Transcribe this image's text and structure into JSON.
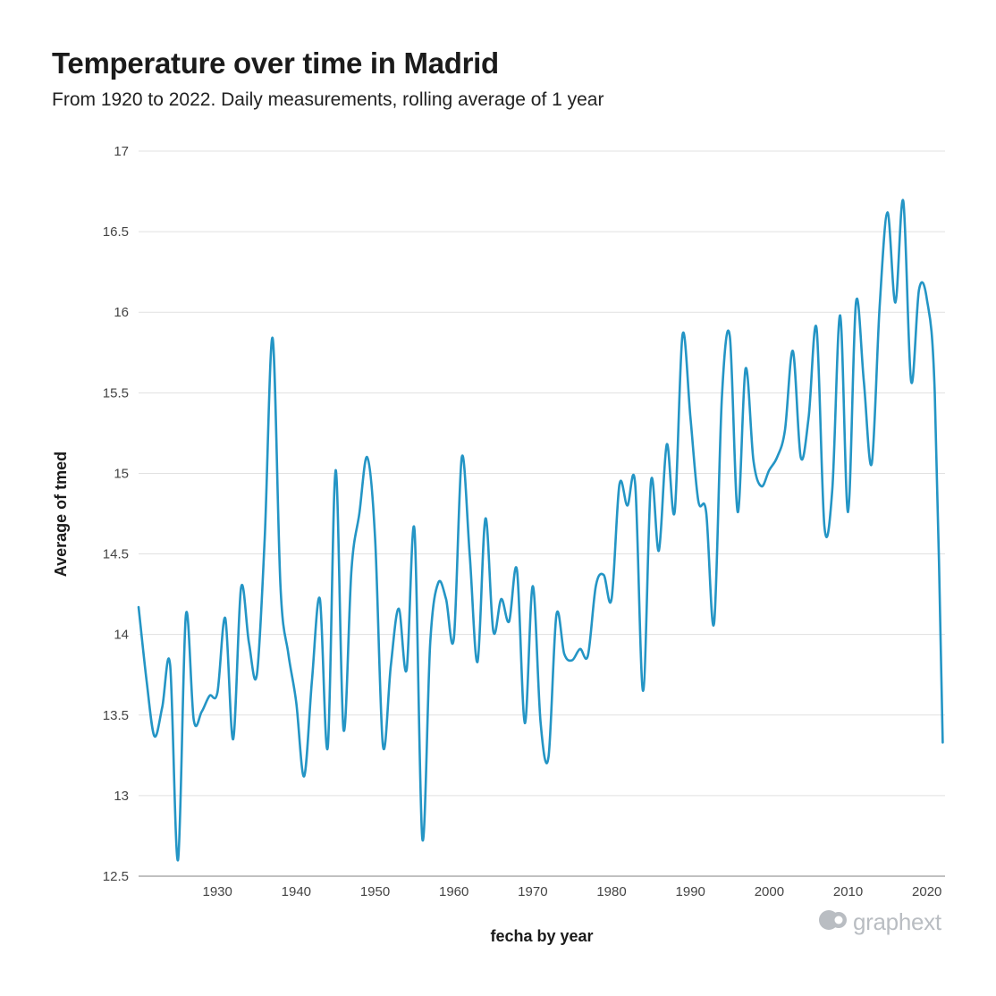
{
  "chart_data": {
    "type": "line",
    "title": "Temperature over time in Madrid",
    "subtitle": "From 1920 to 2022. Daily measurements, rolling average of 1 year",
    "xlabel": "fecha by year",
    "ylabel": "Average of tmed",
    "xlim": [
      1920,
      2022.3
    ],
    "ylim": [
      12.5,
      17
    ],
    "yticks": [
      "12.5",
      "13",
      "13.5",
      "14",
      "14.5",
      "15",
      "15.5",
      "16",
      "16.5",
      "17"
    ],
    "xticks": [
      "1930",
      "1940",
      "1950",
      "1960",
      "1970",
      "1980",
      "1990",
      "2000",
      "2010",
      "2020"
    ],
    "grid": true,
    "series": [
      {
        "name": "Average of tmed",
        "color": "#2495c5",
        "x": [
          1920,
          1921,
          1922,
          1923,
          1924,
          1925,
          1926,
          1927,
          1928,
          1929,
          1930,
          1931,
          1932,
          1933,
          1934,
          1935,
          1936,
          1937,
          1938,
          1939,
          1940,
          1941,
          1942,
          1943,
          1944,
          1945,
          1946,
          1947,
          1948,
          1949,
          1950,
          1951,
          1952,
          1953,
          1954,
          1955,
          1956,
          1957,
          1958,
          1959,
          1960,
          1961,
          1962,
          1963,
          1964,
          1965,
          1966,
          1967,
          1968,
          1969,
          1970,
          1971,
          1972,
          1973,
          1974,
          1975,
          1976,
          1977,
          1978,
          1979,
          1980,
          1981,
          1982,
          1983,
          1984,
          1985,
          1986,
          1987,
          1988,
          1989,
          1990,
          1991,
          1992,
          1993,
          1994,
          1995,
          1996,
          1997,
          1998,
          1999,
          2000,
          2001,
          2002,
          2003,
          2004,
          2005,
          2006,
          2007,
          2008,
          2009,
          2010,
          2011,
          2012,
          2013,
          2014,
          2015,
          2016,
          2017,
          2018,
          2019,
          2020,
          2021,
          2022
        ],
        "values": [
          14.17,
          13.72,
          13.37,
          13.55,
          13.81,
          12.6,
          14.12,
          13.47,
          13.52,
          13.62,
          13.64,
          14.1,
          13.35,
          14.29,
          13.95,
          13.75,
          14.6,
          15.84,
          14.3,
          13.88,
          13.58,
          13.12,
          13.72,
          14.22,
          13.3,
          15.02,
          13.41,
          14.4,
          14.75,
          15.1,
          14.6,
          13.31,
          13.81,
          14.16,
          13.78,
          14.65,
          12.73,
          13.95,
          14.32,
          14.22,
          13.98,
          15.1,
          14.5,
          13.83,
          14.72,
          14.02,
          14.22,
          14.08,
          14.4,
          13.45,
          14.3,
          13.45,
          13.24,
          14.12,
          13.88,
          13.84,
          13.91,
          13.87,
          14.3,
          14.37,
          14.22,
          14.93,
          14.8,
          14.93,
          13.65,
          14.95,
          14.52,
          15.18,
          14.76,
          15.86,
          15.35,
          14.83,
          14.76,
          14.07,
          15.48,
          15.85,
          14.76,
          15.65,
          15.08,
          14.92,
          15.02,
          15.1,
          15.27,
          15.76,
          15.1,
          15.35,
          15.9,
          14.67,
          14.9,
          15.98,
          14.76,
          16.06,
          15.57,
          15.06,
          16.03,
          16.62,
          16.06,
          16.69,
          15.57,
          16.14,
          16.08,
          15.5,
          13.33
        ]
      }
    ]
  },
  "brand": {
    "name": "graphext",
    "color": "#b9bdc2"
  }
}
